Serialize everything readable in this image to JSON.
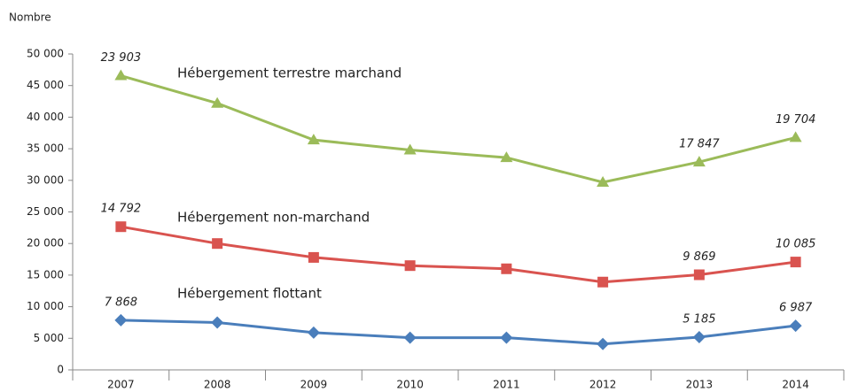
{
  "chart_data": {
    "type": "stacked-line",
    "y_label": "Nombre",
    "categories": [
      "2007",
      "2008",
      "2009",
      "2010",
      "2011",
      "2012",
      "2013",
      "2014"
    ],
    "series": [
      {
        "name": "Hébergement flottant",
        "color": "#4a7ebb",
        "marker": "diamond",
        "values": [
          7868,
          7500,
          5900,
          5100,
          5100,
          4100,
          5185,
          6987
        ],
        "value_labels": [
          "7 868",
          null,
          null,
          null,
          null,
          null,
          "5 185",
          "6 987"
        ]
      },
      {
        "name": "Hébergement non-marchand",
        "color": "#d9534f",
        "marker": "square",
        "values": [
          14792,
          12500,
          11900,
          11400,
          10900,
          9800,
          9869,
          10085
        ],
        "value_labels": [
          "14 792",
          null,
          null,
          null,
          null,
          null,
          "9 869",
          "10 085"
        ]
      },
      {
        "name": "Hébergement terrestre marchand",
        "color": "#9bbb59",
        "marker": "triangle",
        "values": [
          23903,
          22200,
          18600,
          18300,
          17600,
          15800,
          17847,
          19704
        ],
        "value_labels": [
          "23 903",
          null,
          null,
          null,
          null,
          null,
          "17 847",
          "19 704"
        ]
      }
    ],
    "ylim": [
      0,
      50000
    ],
    "yticks": [
      0,
      {
        "value": 5000,
        "label": "5 000"
      },
      {
        "value": 10000,
        "label": "10 000"
      },
      {
        "value": 15000,
        "label": "15 000"
      },
      {
        "value": 20000,
        "label": "20 000"
      },
      {
        "value": 25000,
        "label": "25 000"
      },
      {
        "value": 30000,
        "label": "30 000"
      },
      {
        "value": 35000,
        "label": "35 000"
      },
      {
        "value": 40000,
        "label": "40 000"
      },
      {
        "value": 45000,
        "label": "45 000"
      },
      {
        "value": 50000,
        "label": "50 000"
      }
    ],
    "grid": false
  }
}
